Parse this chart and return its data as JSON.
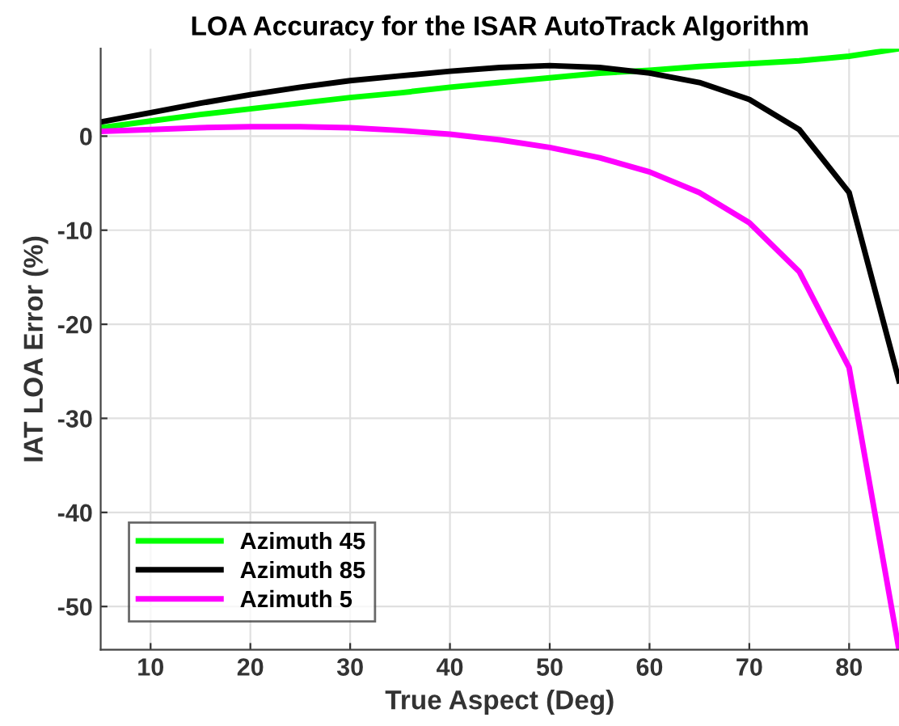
{
  "chart_data": {
    "type": "line",
    "title": "LOA Accuracy for the ISAR AutoTrack Algorithm",
    "xlabel": "True Aspect (Deg)",
    "ylabel": "IAT LOA Error (%)",
    "x": [
      5,
      10,
      15,
      20,
      25,
      30,
      35,
      40,
      45,
      50,
      55,
      60,
      65,
      70,
      75,
      80,
      85
    ],
    "series": [
      {
        "name": "Azimuth 45",
        "color": "#00ff00",
        "values": [
          0.9,
          1.6,
          2.3,
          2.9,
          3.5,
          4.1,
          4.6,
          5.2,
          5.7,
          6.2,
          6.7,
          7.0,
          7.4,
          7.7,
          8.0,
          8.5,
          9.3
        ]
      },
      {
        "name": "Azimuth 85",
        "color": "#000000",
        "values": [
          1.5,
          2.5,
          3.5,
          4.4,
          5.2,
          5.9,
          6.4,
          6.9,
          7.3,
          7.5,
          7.3,
          6.7,
          5.7,
          3.9,
          0.7,
          -6.0,
          -26.0
        ]
      },
      {
        "name": "Azimuth 5",
        "color": "#ff00ff",
        "values": [
          0.5,
          0.7,
          0.9,
          1.0,
          1.0,
          0.9,
          0.6,
          0.2,
          -0.4,
          -1.2,
          -2.3,
          -3.8,
          -6.0,
          -9.2,
          -14.4,
          -24.6,
          -54.6
        ]
      }
    ],
    "xlim": [
      5,
      85
    ],
    "xticks": [
      10,
      20,
      30,
      40,
      50,
      60,
      70,
      80
    ],
    "ylim": [
      -54.6,
      9.3
    ],
    "yticks": [
      -50,
      -40,
      -30,
      -20,
      -10,
      0
    ],
    "grid": true,
    "legend": "bottom left",
    "marker": "none",
    "line_style": "solid"
  }
}
